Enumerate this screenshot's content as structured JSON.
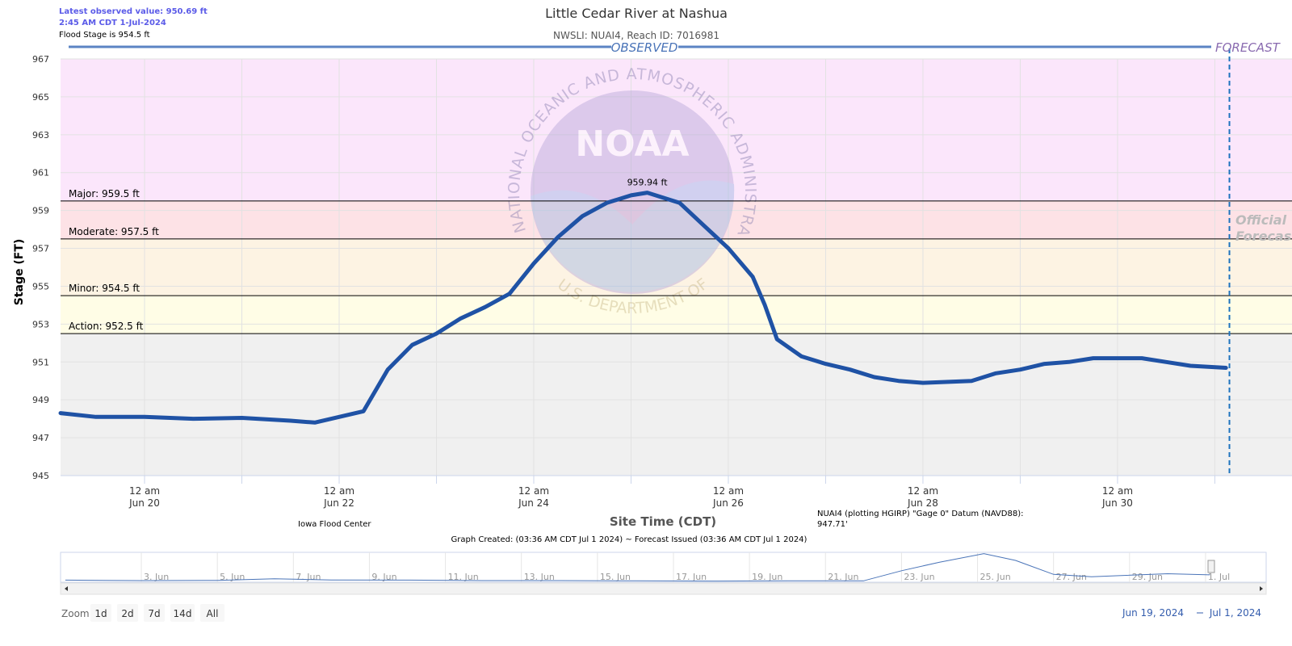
{
  "header": {
    "latest": "Latest observed value: 950.69 ft",
    "latest_time": "2:45 AM CDT 1-Jul-2024",
    "flood_stage": "Flood Stage is 954.5 ft"
  },
  "chart_data": {
    "type": "line",
    "title": "Little Cedar River at Nashua",
    "subtitle": "NWSLI: NUAI4, Reach ID: 7016981",
    "observed_label": "OBSERVED",
    "forecast_label": "FORECAST",
    "forecast_note": [
      "Official",
      "Forecast"
    ],
    "forecast_time": "2024-07-01T03:36",
    "x_label": "Site Time (CDT)",
    "y_label": "Stage (FT)",
    "x": [
      "2024-06-19T03:17",
      "2024-06-19T12:00",
      "2024-06-20T00:00",
      "2024-06-20T12:00",
      "2024-06-21T00:00",
      "2024-06-21T12:00",
      "2024-06-21T18:00",
      "2024-06-22T00:00",
      "2024-06-22T06:00",
      "2024-06-22T12:00",
      "2024-06-22T18:00",
      "2024-06-23T00:00",
      "2024-06-23T06:00",
      "2024-06-23T12:00",
      "2024-06-23T18:00",
      "2024-06-24T00:00",
      "2024-06-24T06:00",
      "2024-06-24T12:00",
      "2024-06-24T18:00",
      "2024-06-25T00:00",
      "2024-06-25T04:00",
      "2024-06-25T12:00",
      "2024-06-25T18:00",
      "2024-06-26T00:00",
      "2024-06-26T06:00",
      "2024-06-26T09:00",
      "2024-06-26T12:00",
      "2024-06-26T18:00",
      "2024-06-27T00:00",
      "2024-06-27T06:00",
      "2024-06-27T12:00",
      "2024-06-27T18:00",
      "2024-06-28T00:00",
      "2024-06-28T12:00",
      "2024-06-28T18:00",
      "2024-06-29T00:00",
      "2024-06-29T06:00",
      "2024-06-29T12:00",
      "2024-06-29T18:00",
      "2024-06-30T00:00",
      "2024-06-30T06:00",
      "2024-06-30T12:00",
      "2024-06-30T18:00",
      "2024-07-01T02:45"
    ],
    "series": [
      {
        "color": "#1f52a5",
        "values": [
          948.3,
          948.1,
          948.1,
          948.0,
          948.05,
          947.9,
          947.8,
          948.1,
          948.4,
          950.6,
          951.9,
          952.5,
          953.3,
          953.9,
          954.6,
          956.2,
          957.6,
          958.7,
          959.4,
          959.8,
          959.94,
          959.4,
          958.2,
          957.0,
          955.5,
          954.0,
          952.2,
          951.3,
          950.9,
          950.6,
          950.2,
          950.0,
          949.9,
          950.0,
          950.4,
          950.6,
          950.9,
          951.0,
          951.2,
          951.2,
          951.2,
          951.0,
          950.8,
          950.69
        ],
        "value_labels": [
          null,
          null,
          null,
          null,
          null,
          null,
          null,
          null,
          null,
          null,
          null,
          null,
          null,
          null,
          null,
          null,
          null,
          null,
          null,
          null,
          "959.94 ft",
          null,
          null,
          null,
          null,
          null,
          null,
          null,
          null,
          null,
          null,
          null,
          null,
          null,
          null,
          null,
          null,
          null,
          null,
          null,
          null,
          null,
          null,
          null
        ]
      }
    ],
    "xlim": [
      "2024-06-19T03:17",
      "2024-07-01T19:02"
    ],
    "ylim": [
      945,
      967
    ],
    "yticks": [
      945,
      947,
      949,
      951,
      953,
      955,
      957,
      959,
      961,
      963,
      965,
      967
    ],
    "xticks": [
      {
        "value": "2024-06-20T00:00",
        "label": [
          "12 am",
          "Jun 20"
        ]
      },
      {
        "value": "2024-06-22T00:00",
        "label": [
          "12 am",
          "Jun 22"
        ]
      },
      {
        "value": "2024-06-24T00:00",
        "label": [
          "12 am",
          "Jun 24"
        ]
      },
      {
        "value": "2024-06-26T00:00",
        "label": [
          "12 am",
          "Jun 26"
        ]
      },
      {
        "value": "2024-06-28T00:00",
        "label": [
          "12 am",
          "Jun 28"
        ]
      },
      {
        "value": "2024-06-30T00:00",
        "label": [
          "12 am",
          "Jun 30"
        ]
      }
    ],
    "xminor": [
      "2024-06-21T00:00",
      "2024-06-23T00:00",
      "2024-06-25T00:00",
      "2024-06-27T00:00",
      "2024-06-29T00:00",
      "2024-07-01T00:00"
    ],
    "grid": true,
    "base_color": "#f0f0f0",
    "thresholds": [
      {
        "value": 952.5,
        "label": "Action: 952.5 ft",
        "band_color": "#fffde6"
      },
      {
        "value": 954.5,
        "label": "Minor: 954.5 ft",
        "band_color": "#fdf3e3"
      },
      {
        "value": 957.5,
        "label": "Moderate: 957.5 ft",
        "band_color": "#fde2e6"
      },
      {
        "value": 959.5,
        "label": "Major: 959.5 ft",
        "band_color": "#fbe6fb"
      }
    ],
    "watermark": {
      "logo": "NOAA",
      "top": "NATIONAL OCEANIC AND ATMOSPHERIC ADMINISTRATION",
      "bottom": "U.S. DEPARTMENT OF COMMERCE"
    }
  },
  "credits": {
    "left": "Iowa Flood Center",
    "datum": [
      "NUAI4 (plotting HGIRP) \"Gage 0\" Datum (NAVD88):",
      "947.71'"
    ],
    "created": "Graph Created: (03:36 AM CDT Jul 1 2024) ~ Forecast Issued (03:36 AM CDT Jul 1 2024)"
  },
  "navigator": {
    "xlim": [
      "2024-05-31T21:00",
      "2024-07-02T00:00"
    ],
    "ylim": [
      947.5,
      960.5
    ],
    "x": [
      "2024-06-01T00:00",
      "2024-06-03T00:00",
      "2024-06-05T00:00",
      "2024-06-06T12:00",
      "2024-06-08T00:00",
      "2024-06-10T00:00",
      "2024-06-12T00:00",
      "2024-06-14T00:00",
      "2024-06-16T00:00",
      "2024-06-18T00:00",
      "2024-06-20T00:00",
      "2024-06-22T00:00",
      "2024-06-23T00:00",
      "2024-06-24T00:00",
      "2024-06-25T04:00",
      "2024-06-26T00:00",
      "2024-06-27T00:00",
      "2024-06-28T00:00",
      "2024-06-30T00:00",
      "2024-07-01T02:45"
    ],
    "values": [
      948.4,
      948.2,
      948.3,
      949.0,
      948.5,
      948.4,
      948.2,
      948.2,
      948.1,
      948.0,
      948.1,
      948.1,
      952.5,
      956.2,
      959.94,
      957.0,
      950.9,
      949.9,
      951.2,
      950.69
    ],
    "ticks": [
      {
        "value": "2024-06-03T00:00",
        "label": "3. Jun"
      },
      {
        "value": "2024-06-05T00:00",
        "label": "5. Jun"
      },
      {
        "value": "2024-06-07T00:00",
        "label": "7. Jun"
      },
      {
        "value": "2024-06-09T00:00",
        "label": "9. Jun"
      },
      {
        "value": "2024-06-11T00:00",
        "label": "11. Jun"
      },
      {
        "value": "2024-06-13T00:00",
        "label": "13. Jun"
      },
      {
        "value": "2024-06-15T00:00",
        "label": "15. Jun"
      },
      {
        "value": "2024-06-17T00:00",
        "label": "17. Jun"
      },
      {
        "value": "2024-06-19T00:00",
        "label": "19. Jun"
      },
      {
        "value": "2024-06-21T00:00",
        "label": "21. Jun"
      },
      {
        "value": "2024-06-23T00:00",
        "label": "23. Jun"
      },
      {
        "value": "2024-06-25T00:00",
        "label": "25. Jun"
      },
      {
        "value": "2024-06-27T00:00",
        "label": "27. Jun"
      },
      {
        "value": "2024-06-29T00:00",
        "label": "29. Jun"
      },
      {
        "value": "2024-07-01T00:00",
        "label": "1. Jul"
      }
    ]
  },
  "zoom": {
    "label": "Zoom",
    "buttons": [
      "1d",
      "2d",
      "7d",
      "14d",
      "All"
    ]
  },
  "range": {
    "from": "Jun 19, 2024",
    "to": "Jul 1, 2024"
  }
}
